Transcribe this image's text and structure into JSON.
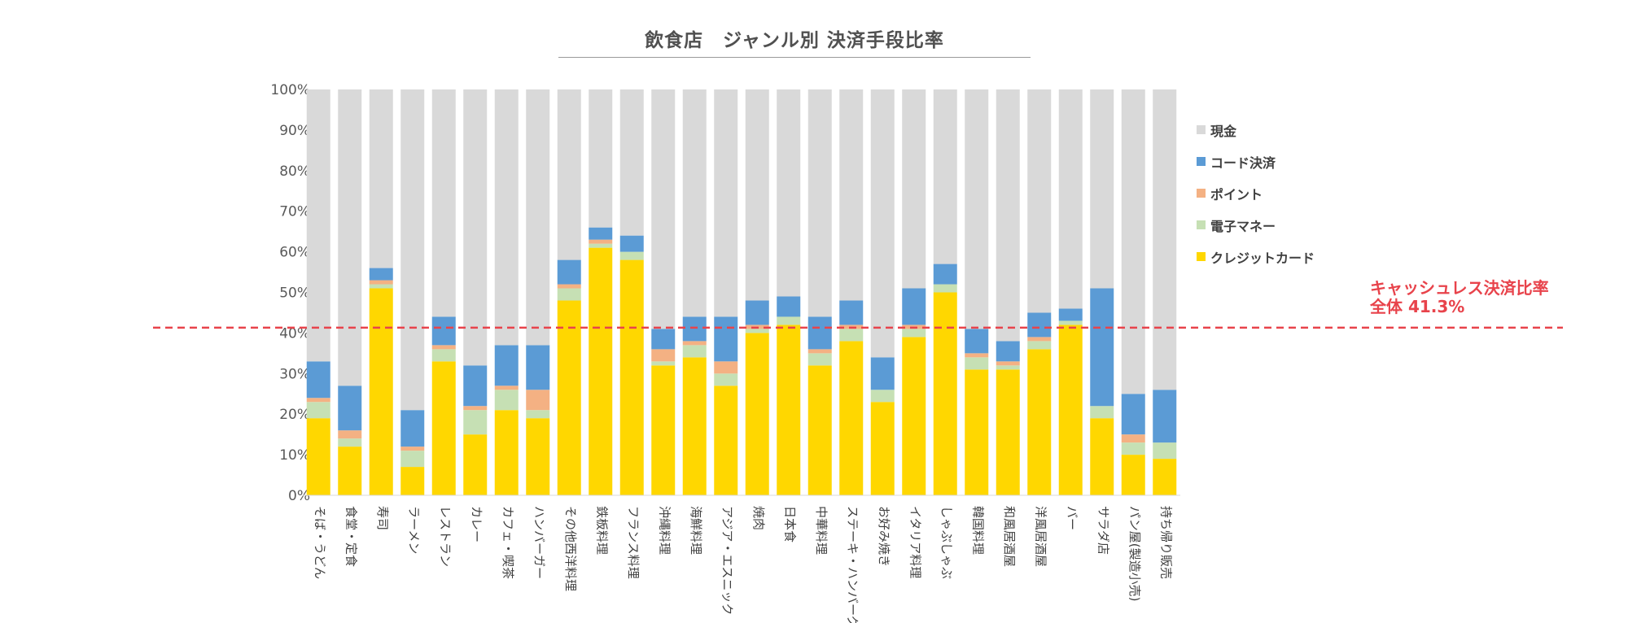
{
  "title": "飲食店　ジャンル別 決済手段比率",
  "chart_data": {
    "type": "bar",
    "stacked": true,
    "title": "飲食店　ジャンル別 決済手段比率",
    "ylim": [
      0,
      100
    ],
    "yticks": [
      "0%",
      "10%",
      "20%",
      "30%",
      "40%",
      "50%",
      "60%",
      "70%",
      "80%",
      "90%",
      "100%"
    ],
    "categories": [
      "そば・うどん",
      "食堂・定食",
      "寿司",
      "ラーメン",
      "レストラン",
      "カレー",
      "カフェ・喫茶",
      "ハンバーガー",
      "その他西洋料理",
      "鉄板料理",
      "フランス料理",
      "沖縄料理",
      "海鮮料理",
      "アジア・エスニック",
      "焼肉",
      "日本食",
      "中華料理",
      "ステーキ・ハンバーグ",
      "お好み焼き",
      "イタリア料理",
      "しゃぶしゃぶ",
      "韓国料理",
      "和風居酒屋",
      "洋風居酒屋",
      "バー",
      "サラダ店",
      "パン屋(製造小売)",
      "持ち帰り販売"
    ],
    "series": [
      {
        "name": "クレジットカード",
        "color": "#ffd700",
        "values": [
          19,
          12,
          51,
          7,
          33,
          15,
          21,
          19,
          48,
          61,
          58,
          32,
          34,
          27,
          40,
          42,
          32,
          38,
          23,
          39,
          50,
          31,
          31,
          36,
          42,
          19,
          10,
          9
        ]
      },
      {
        "name": "電子マネー",
        "color": "#c6e0b4",
        "values": [
          4,
          2,
          1,
          4,
          3,
          6,
          5,
          2,
          3,
          1,
          2,
          1,
          3,
          3,
          1,
          2,
          3,
          3,
          3,
          2,
          2,
          3,
          1,
          2,
          1,
          3,
          3,
          4
        ]
      },
      {
        "name": "ポイント",
        "color": "#f4b183",
        "values": [
          1,
          2,
          1,
          1,
          1,
          1,
          1,
          5,
          1,
          1,
          0,
          3,
          1,
          3,
          1,
          0,
          1,
          1,
          0,
          1,
          0,
          1,
          1,
          1,
          0,
          0,
          2,
          0
        ]
      },
      {
        "name": "コード決済",
        "color": "#5b9bd5",
        "values": [
          9,
          11,
          3,
          9,
          7,
          10,
          10,
          11,
          6,
          3,
          4,
          5,
          6,
          11,
          6,
          5,
          8,
          6,
          8,
          9,
          5,
          6,
          5,
          6,
          3,
          29,
          10,
          13
        ]
      },
      {
        "name": "現金",
        "color": "#d9d9d9",
        "values": [
          67,
          73,
          44,
          79,
          56,
          68,
          63,
          63,
          42,
          34,
          36,
          59,
          56,
          56,
          52,
          51,
          56,
          52,
          66,
          49,
          43,
          59,
          62,
          55,
          54,
          49,
          75,
          74
        ]
      }
    ],
    "legend": [
      "現金",
      "コード決済",
      "ポイント",
      "電子マネー",
      "クレジットカード"
    ],
    "legend_position": "right",
    "reference_line": {
      "value": 41.3,
      "color": "#e8434b",
      "style": "dashed"
    },
    "annotation": {
      "line1": "キャッシュレス決済比率",
      "line2": "全体 41.3%"
    }
  }
}
